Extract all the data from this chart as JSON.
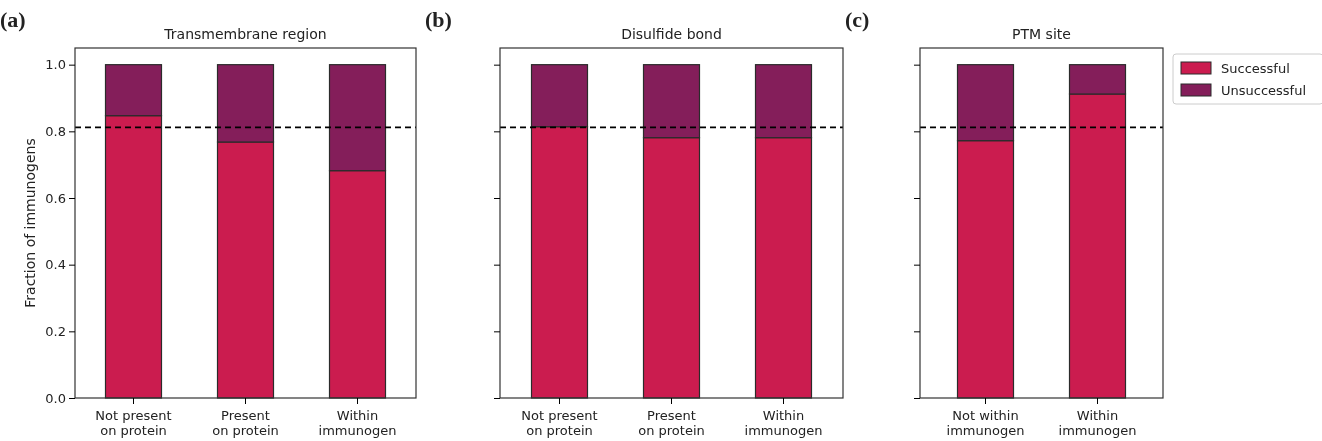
{
  "chart_data": [
    {
      "type": "bar",
      "stacked": true,
      "title": "Transmembrane region",
      "ylabel": "Fraction of immunogens",
      "annotations": [
        "(a)"
      ],
      "categories": [
        "Not present\non protein",
        "Present\non protein",
        "Within\nimmunogen"
      ],
      "series": [
        {
          "color": "#cb1c4f",
          "values": [
            0.847,
            0.768,
            0.682
          ]
        },
        {
          "color": "#841e5a",
          "values": [
            0.153,
            0.232,
            0.318
          ]
        }
      ],
      "ylim": [
        0,
        1.05
      ],
      "yticks": [
        {
          "value": 0,
          "label": "0.0"
        },
        0.2,
        0.4,
        0.6,
        0.8,
        {
          "value": 1,
          "label": "1.0"
        }
      ],
      "ref_lines": [
        {
          "axis": "y",
          "value": 0.812,
          "line_style": "dashed",
          "color": "#000000"
        }
      ],
      "legend": false
    },
    {
      "type": "bar",
      "stacked": true,
      "title": "Disulfide bond",
      "annotations": [
        "(b)"
      ],
      "categories": [
        "Not present\non protein",
        "Present\non protein",
        "Within\nimmunogen"
      ],
      "series": [
        {
          "color": "#cb1c4f",
          "values": [
            0.814,
            0.781,
            0.781
          ]
        },
        {
          "color": "#841e5a",
          "values": [
            0.186,
            0.219,
            0.219
          ]
        }
      ],
      "ylim": [
        0,
        1.05
      ],
      "yticks": [
        0,
        0.2,
        0.4,
        0.6,
        0.8,
        1
      ],
      "tick_labels": "x",
      "ref_lines": [
        {
          "axis": "y",
          "value": 0.812,
          "line_style": "dashed",
          "color": "#000000"
        }
      ],
      "legend": false
    },
    {
      "type": "bar",
      "stacked": true,
      "title": "PTM site",
      "annotations": [
        "(c)"
      ],
      "categories": [
        "Not within\nimmunogen",
        "Within\nimmunogen"
      ],
      "series": [
        {
          "name": "Successful",
          "color": "#cb1c4f",
          "values": [
            0.772,
            0.912
          ]
        },
        {
          "name": "Unsuccessful",
          "color": "#841e5a",
          "values": [
            0.228,
            0.088
          ]
        }
      ],
      "ylim": [
        0,
        1.05
      ],
      "yticks": [
        0,
        0.2,
        0.4,
        0.6,
        0.8,
        1
      ],
      "tick_labels": "x",
      "ref_lines": [
        {
          "axis": "y",
          "value": 0.812,
          "line_style": "dashed",
          "color": "#000000"
        }
      ],
      "legend": "right"
    }
  ]
}
